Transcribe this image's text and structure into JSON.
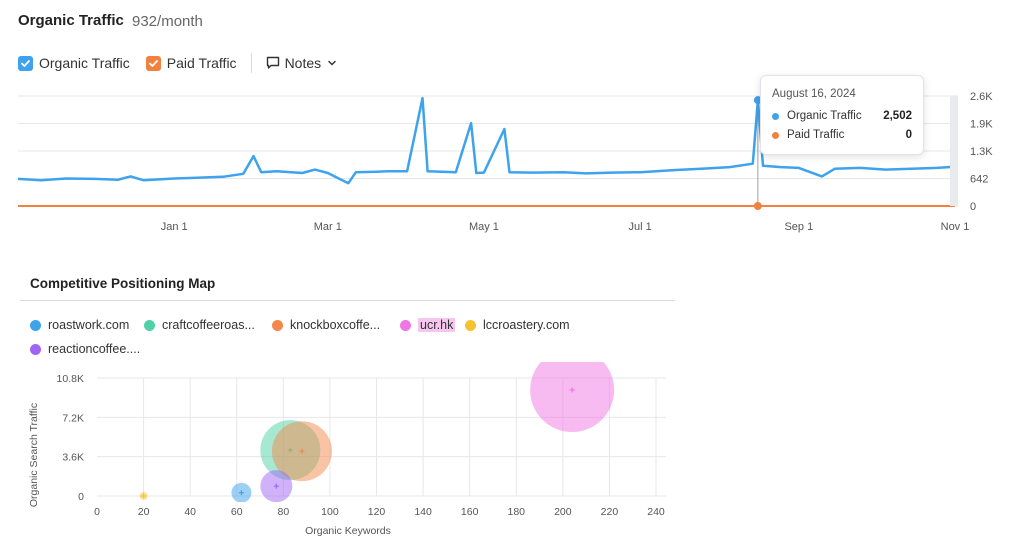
{
  "header": {
    "title": "Organic Traffic",
    "subtitle": "932/month"
  },
  "toolbar": {
    "organic_label": "Organic Traffic",
    "paid_label": "Paid Traffic",
    "notes_label": "Notes"
  },
  "colors": {
    "organic": "#3ea2ec",
    "paid": "#f1813e",
    "grid": "#e6e7eb",
    "tooltip_line": "#9aa0aa"
  },
  "tooltip": {
    "date": "August 16, 2024",
    "rows": [
      {
        "label": "Organic Traffic",
        "value": "2,502",
        "color": "#3ea2ec"
      },
      {
        "label": "Paid Traffic",
        "value": "0",
        "color": "#f1813e"
      }
    ]
  },
  "chart_data": [
    {
      "type": "line",
      "title": "Organic Traffic",
      "x_ticks": [
        "Jan 1",
        "Mar 1",
        "May 1",
        "Jul 1",
        "Sep 1",
        "Nov 1"
      ],
      "y_ticks": [
        "2.6K",
        "1.9K",
        "1.3K",
        "642",
        "0"
      ],
      "ylim": [
        0,
        2600
      ],
      "xlim": [
        "2023-11-01",
        "2024-11-01"
      ],
      "grid": true,
      "series": [
        {
          "name": "Organic Traffic",
          "color": "#3ea2ec",
          "points": [
            [
              "2023-11-01",
              640
            ],
            [
              "2023-11-10",
              610
            ],
            [
              "2023-11-20",
              650
            ],
            [
              "2023-12-01",
              640
            ],
            [
              "2023-12-10",
              620
            ],
            [
              "2023-12-15",
              700
            ],
            [
              "2023-12-20",
              610
            ],
            [
              "2024-01-01",
              650
            ],
            [
              "2024-01-10",
              670
            ],
            [
              "2024-01-20",
              690
            ],
            [
              "2024-01-28",
              760
            ],
            [
              "2024-02-01",
              1180
            ],
            [
              "2024-02-04",
              800
            ],
            [
              "2024-02-10",
              820
            ],
            [
              "2024-02-20",
              780
            ],
            [
              "2024-02-25",
              860
            ],
            [
              "2024-03-01",
              780
            ],
            [
              "2024-03-09",
              540
            ],
            [
              "2024-03-12",
              800
            ],
            [
              "2024-03-20",
              810
            ],
            [
              "2024-03-25",
              820
            ],
            [
              "2024-04-01",
              820
            ],
            [
              "2024-04-07",
              2550
            ],
            [
              "2024-04-09",
              820
            ],
            [
              "2024-04-20",
              800
            ],
            [
              "2024-04-26",
              1960
            ],
            [
              "2024-04-28",
              780
            ],
            [
              "2024-05-01",
              790
            ],
            [
              "2024-05-09",
              1820
            ],
            [
              "2024-05-11",
              800
            ],
            [
              "2024-05-20",
              790
            ],
            [
              "2024-06-01",
              800
            ],
            [
              "2024-06-10",
              770
            ],
            [
              "2024-06-20",
              790
            ],
            [
              "2024-07-01",
              800
            ],
            [
              "2024-07-15",
              850
            ],
            [
              "2024-07-25",
              880
            ],
            [
              "2024-08-05",
              920
            ],
            [
              "2024-08-14",
              1000
            ],
            [
              "2024-08-16",
              2502
            ],
            [
              "2024-08-18",
              950
            ],
            [
              "2024-08-25",
              920
            ],
            [
              "2024-09-01",
              900
            ],
            [
              "2024-09-10",
              700
            ],
            [
              "2024-09-15",
              880
            ],
            [
              "2024-09-25",
              900
            ],
            [
              "2024-10-05",
              860
            ],
            [
              "2024-10-15",
              880
            ],
            [
              "2024-10-25",
              900
            ],
            [
              "2024-11-01",
              930
            ]
          ]
        },
        {
          "name": "Paid Traffic",
          "color": "#f1813e",
          "points": [
            [
              "2023-11-01",
              0
            ],
            [
              "2024-11-01",
              0
            ]
          ]
        }
      ],
      "highlight": {
        "date": "2024-08-16",
        "organic": 2502,
        "paid": 0
      }
    },
    {
      "type": "scatter",
      "title": "Competitive Positioning Map",
      "xlabel": "Organic Keywords",
      "ylabel": "Organic Search Traffic",
      "xlim": [
        0,
        240
      ],
      "ylim": [
        0,
        10800
      ],
      "x_ticks": [
        "0",
        "20",
        "40",
        "60",
        "80",
        "100",
        "120",
        "140",
        "160",
        "180",
        "200",
        "220",
        "240"
      ],
      "y_ticks": [
        "10.8K",
        "7.2K",
        "3.6K",
        "0"
      ],
      "grid": true,
      "legend_position": "top-left",
      "series": [
        {
          "name": "roastwork.com",
          "color": "#3ea2ec",
          "x": 62,
          "y": 300,
          "size": 10
        },
        {
          "name": "craftcoffeeroas...",
          "color": "#4fd1a5",
          "x": 83,
          "y": 4200,
          "size": 30
        },
        {
          "name": "knockboxcoffe...",
          "color": "#f4874b",
          "x": 88,
          "y": 4100,
          "size": 30
        },
        {
          "name": "ucr.hk",
          "color": "#ef76e4",
          "x": 204,
          "y": 9700,
          "size": 42,
          "highlighted": true
        },
        {
          "name": "lccroastery.com",
          "color": "#f7c12f",
          "x": 20,
          "y": 0,
          "size": 4
        },
        {
          "name": "reactioncoffee....",
          "color": "#a065f3",
          "x": 77,
          "y": 900,
          "size": 16
        }
      ]
    }
  ]
}
